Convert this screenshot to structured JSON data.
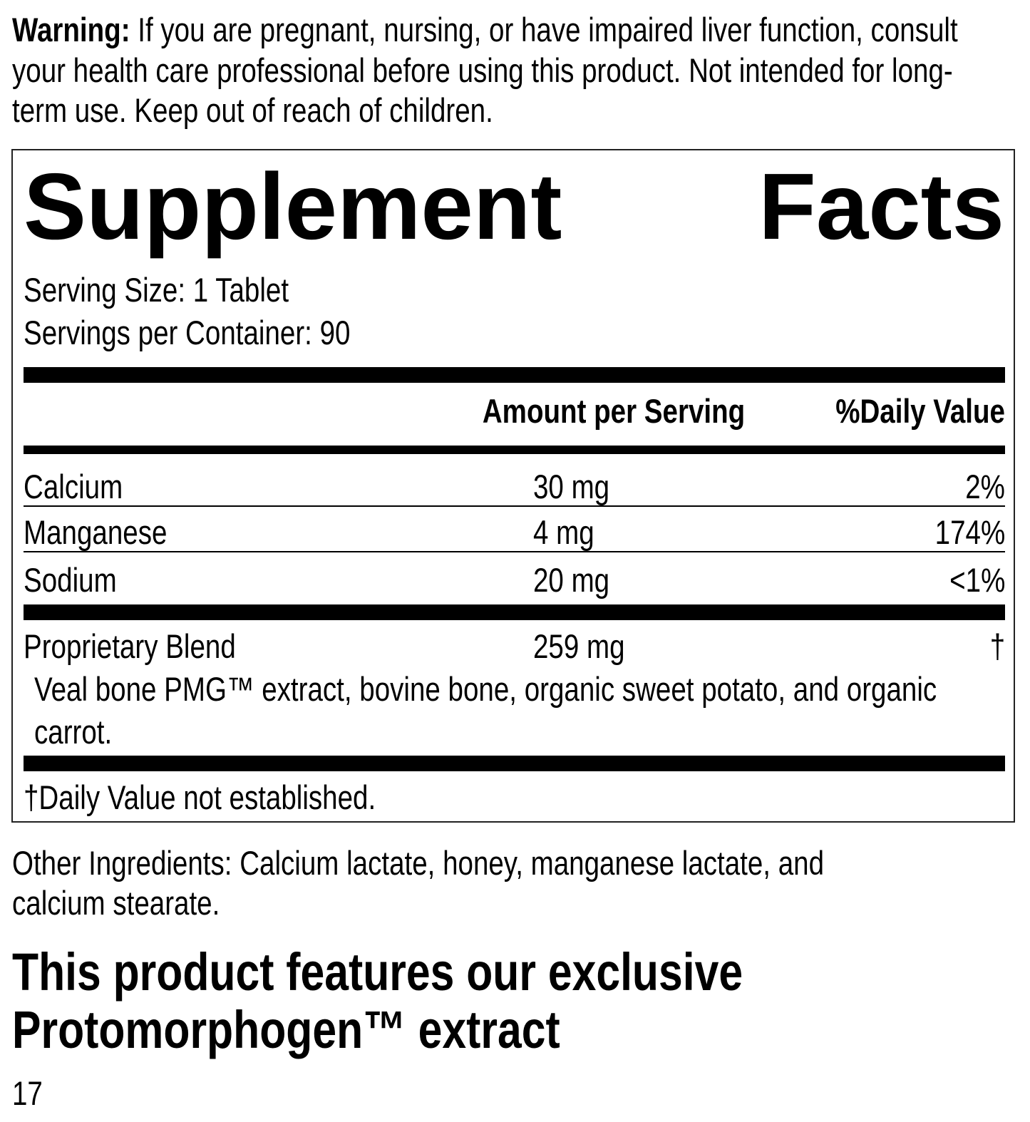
{
  "warning": {
    "label": "Warning:",
    "lines": [
      " If you are pregnant, nursing, or have impaired liver function, consult",
      "your health care professional before using this product. Not intended for long-",
      "term use. Keep out of reach of children."
    ]
  },
  "facts": {
    "title_left": "Supplement",
    "title_right": "Facts",
    "serving_size": "Serving Size: 1 Tablet",
    "servings_per_container": "Servings per Container: 90",
    "header_amount": "Amount per Serving",
    "header_dv": "%Daily Value",
    "rows": [
      {
        "name": "Calcium",
        "amount": "30 mg",
        "dv": "2%"
      },
      {
        "name": "Manganese",
        "amount": "4 mg",
        "dv": "174%"
      },
      {
        "name": "Sodium",
        "amount": "20 mg",
        "dv": "<1%"
      }
    ],
    "blend": {
      "name": "Proprietary Blend",
      "amount": "259 mg",
      "dv": "†",
      "ingredients_lines": [
        "Veal bone PMG™ extract, bovine bone, organic sweet potato, and organic",
        "carrot."
      ]
    },
    "footnote": "†Daily Value not established."
  },
  "other_ingredients": [
    "Other Ingredients: Calcium lactate, honey, manganese lactate, and",
    "calcium stearate."
  ],
  "feature_heading": [
    "This product features our exclusive",
    "Protomorphogen™ extract"
  ],
  "page_number": "17"
}
